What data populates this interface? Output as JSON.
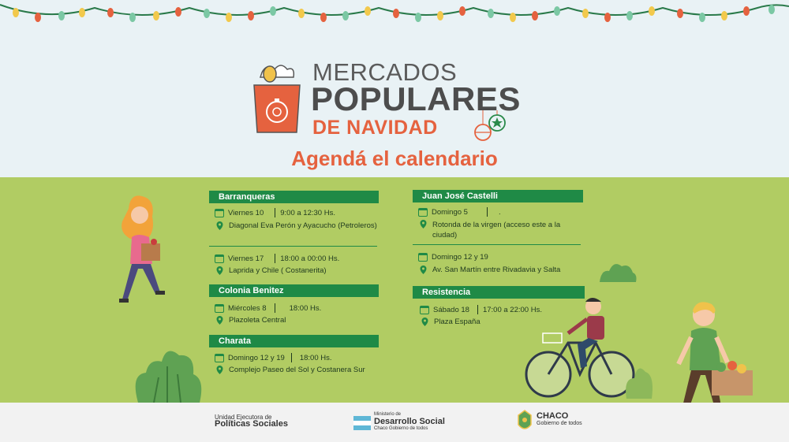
{
  "logo": {
    "line1": "MERCADOS",
    "line2": "POPULARES",
    "line3": "DE NAVIDAD"
  },
  "headline": "Agendá el calendario",
  "left_sections": [
    {
      "title": "Barranqueras",
      "events": [
        {
          "day": "Viernes 10",
          "time": "9:00 a 12:30 Hs.",
          "place": "Diagonal Eva Perón y Ayacucho (Petroleros)"
        },
        {
          "day": "Viernes 17",
          "time": "18:00 a 00:00 Hs.",
          "place": "Laprida y Chile ( Costanerita)"
        }
      ]
    },
    {
      "title": "Colonia Benitez",
      "events": [
        {
          "day": "Miércoles 8",
          "time": "18:00 Hs.",
          "place": "Plazoleta Central"
        }
      ]
    },
    {
      "title": "Charata",
      "events": [
        {
          "day": "Domingo 12 y 19",
          "time": "18:00 Hs.",
          "place": "Complejo Paseo del Sol y Costanera Sur"
        }
      ]
    }
  ],
  "right_sections": [
    {
      "title": "Juan José Castelli",
      "events": [
        {
          "day": "Domingo 5",
          "time": ".",
          "place_line1": "Rotonda de la virgen (acceso este a la",
          "place_line2": "ciudad)"
        },
        {
          "day": "Domingo 12 y 19",
          "time": "",
          "place_line1": "Av. San Martín entre Rivadavia y Salta",
          "place_line2": ""
        }
      ]
    },
    {
      "title": "Resistencia",
      "events": [
        {
          "day": "Sábado 18",
          "time": "17:00 a 22:00 Hs.",
          "place_line1": "Plaza España",
          "place_line2": ""
        }
      ]
    }
  ],
  "footer": {
    "unit_small": "Unidad Ejecutora de",
    "unit_bold": "Políticas Sociales",
    "ministry_small": "Ministerio de",
    "ministry_bold": "Desarrollo Social",
    "ministry_sub": "Chaco Gobierno de todos",
    "chaco_bold": "CHACO",
    "chaco_sub": "Gobierno de todos"
  },
  "colors": {
    "accent": "#e5623f",
    "green_band": "#b1cc63",
    "section_header": "#1f8a46",
    "sky": "#e9f2f5"
  },
  "icons": [
    "calendar-icon",
    "location-pin-icon",
    "shopping-bag-icon",
    "christmas-ornament-icon",
    "garland-lights-icon"
  ]
}
